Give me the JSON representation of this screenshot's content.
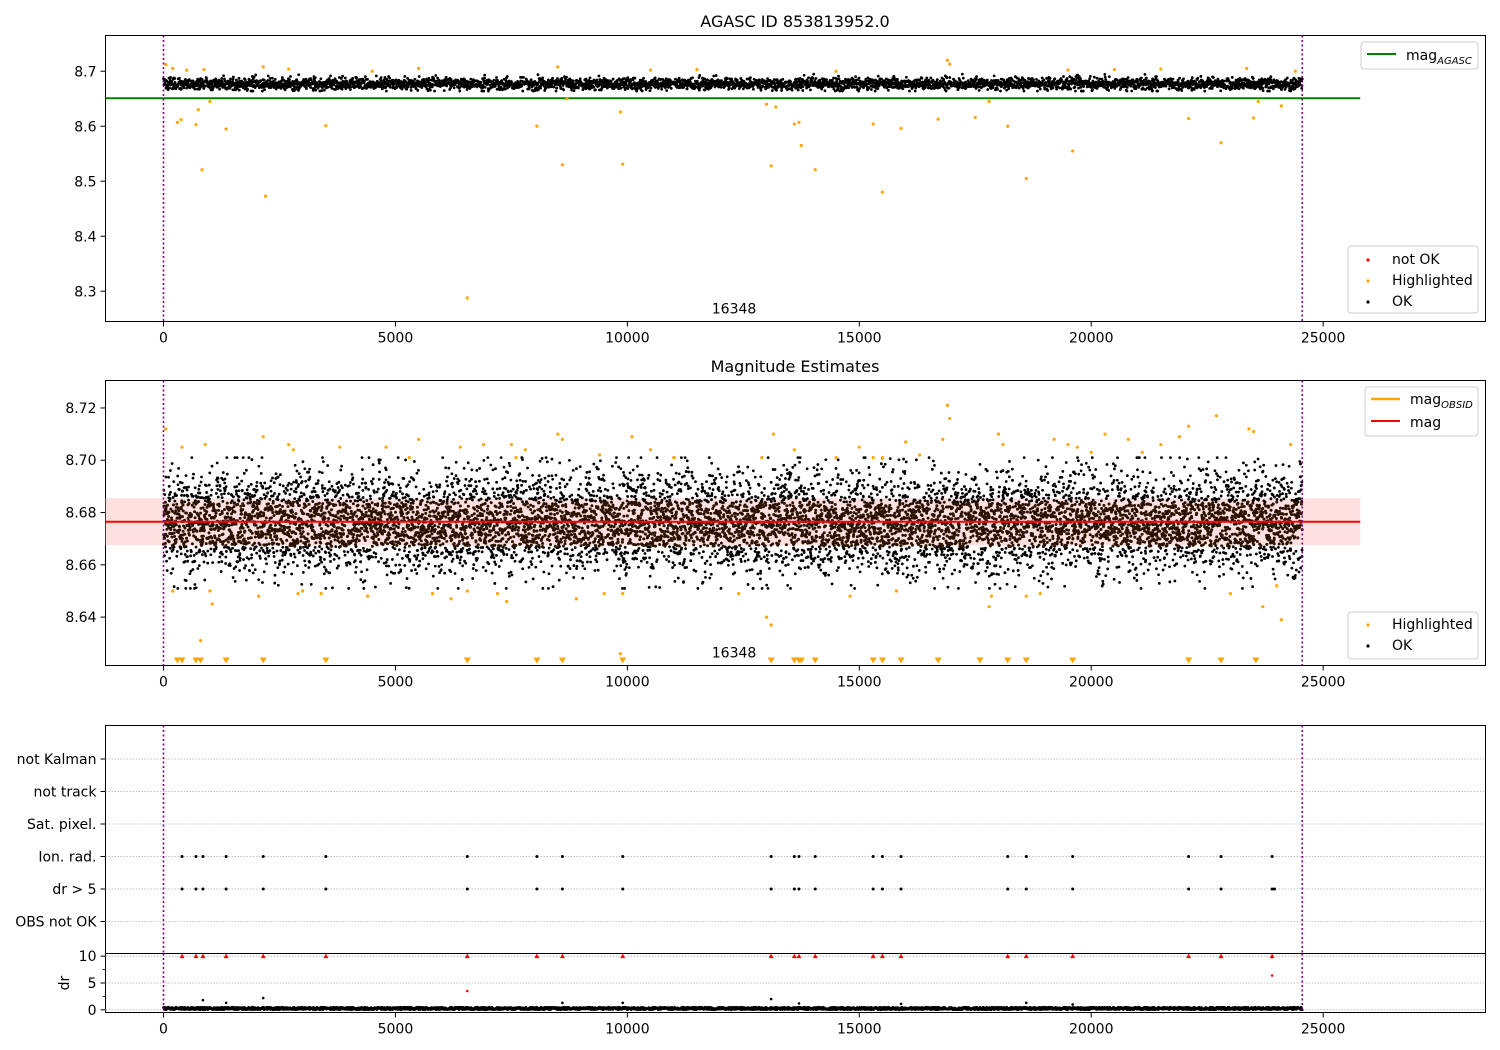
{
  "chart_data": [
    {
      "type": "scatter",
      "title": "AGASC ID 853813952.0",
      "xlabel": "",
      "ylabel": "",
      "xlim": [
        -1250,
        28500
      ],
      "ylim": [
        8.245,
        8.765
      ],
      "xticks": [
        0,
        5000,
        10000,
        15000,
        20000,
        25000
      ],
      "yticks": [
        8.3,
        8.4,
        8.5,
        8.6,
        8.7
      ],
      "ytick_labels": [
        "8.3",
        "8.4",
        "8.5",
        "8.6",
        "8.7"
      ],
      "grid": false,
      "obsid_annotation": "16348",
      "obsid_annotation_x": 12300,
      "obsid_boundaries": [
        0,
        24550
      ],
      "reference_lines": [
        {
          "name": "mag_AGASC",
          "label": "mag",
          "subscript": "AGASC",
          "y": 8.651,
          "x_range": [
            -1250,
            25800
          ],
          "color": "#008000"
        }
      ],
      "legend_upper": {
        "position": "top-right",
        "entries": [
          {
            "label": "mag",
            "subscript": "AGASC",
            "kind": "line",
            "color": "#008000"
          }
        ]
      },
      "legend_lower": {
        "position": "bottom-right",
        "entries": [
          {
            "label": "not OK",
            "kind": "point",
            "color": "#ff0000"
          },
          {
            "label": "Highlighted",
            "kind": "point",
            "color": "#ffa500"
          },
          {
            "label": "OK",
            "kind": "point",
            "color": "#000000"
          }
        ]
      },
      "series": [
        {
          "name": "OK",
          "color": "#000000",
          "x_range": [
            0,
            24550
          ],
          "n": 4200,
          "band": [
            8.664,
            8.698
          ],
          "center": 8.677
        },
        {
          "name": "Highlighted",
          "color": "#ffa500",
          "points": [
            [
              50,
              8.712
            ],
            [
              200,
              8.705
            ],
            [
              300,
              8.607
            ],
            [
              380,
              8.612
            ],
            [
              500,
              8.702
            ],
            [
              700,
              8.603
            ],
            [
              750,
              8.63
            ],
            [
              830,
              8.521
            ],
            [
              870,
              8.703
            ],
            [
              1000,
              8.645
            ],
            [
              1350,
              8.595
            ],
            [
              2150,
              8.708
            ],
            [
              2200,
              8.473
            ],
            [
              2700,
              8.704
            ],
            [
              3500,
              8.601
            ],
            [
              4500,
              8.7
            ],
            [
              5500,
              8.705
            ],
            [
              6550,
              8.288
            ],
            [
              8050,
              8.6
            ],
            [
              8500,
              8.708
            ],
            [
              8600,
              8.53
            ],
            [
              8700,
              8.65
            ],
            [
              9850,
              8.626
            ],
            [
              9900,
              8.531
            ],
            [
              10500,
              8.702
            ],
            [
              11500,
              8.703
            ],
            [
              13000,
              8.64
            ],
            [
              13100,
              8.528
            ],
            [
              13200,
              8.635
            ],
            [
              13600,
              8.604
            ],
            [
              13700,
              8.607
            ],
            [
              13750,
              8.565
            ],
            [
              14050,
              8.521
            ],
            [
              14500,
              8.7
            ],
            [
              15300,
              8.604
            ],
            [
              15500,
              8.48
            ],
            [
              15900,
              8.596
            ],
            [
              16700,
              8.613
            ],
            [
              16900,
              8.72
            ],
            [
              16950,
              8.713
            ],
            [
              17500,
              8.616
            ],
            [
              17800,
              8.645
            ],
            [
              18200,
              8.6
            ],
            [
              18600,
              8.505
            ],
            [
              19500,
              8.702
            ],
            [
              19600,
              8.555
            ],
            [
              20500,
              8.703
            ],
            [
              21500,
              8.704
            ],
            [
              22100,
              8.614
            ],
            [
              22800,
              8.57
            ],
            [
              23350,
              8.705
            ],
            [
              23500,
              8.615
            ],
            [
              23600,
              8.645
            ],
            [
              24100,
              8.637
            ],
            [
              24400,
              8.7
            ]
          ]
        },
        {
          "name": "not OK",
          "color": "#ff0000",
          "points": []
        }
      ]
    },
    {
      "type": "scatter",
      "title": "Magnitude Estimates",
      "xlabel": "",
      "ylabel": "",
      "xlim": [
        -1250,
        28500
      ],
      "ylim": [
        8.6215,
        8.7305
      ],
      "xticks": [
        0,
        5000,
        10000,
        15000,
        20000,
        25000
      ],
      "yticks": [
        8.64,
        8.66,
        8.68,
        8.7,
        8.72
      ],
      "ytick_labels": [
        "8.64",
        "8.66",
        "8.68",
        "8.70",
        "8.72"
      ],
      "grid": false,
      "obsid_annotation": "16348",
      "obsid_annotation_x": 12300,
      "obsid_boundaries": [
        0,
        24550
      ],
      "reference_lines": [
        {
          "name": "mag",
          "label": "mag",
          "y": 8.6765,
          "x_range": [
            -1250,
            25800
          ],
          "color": "#ff0000"
        },
        {
          "name": "mag_OBSID",
          "label": "mag",
          "subscript": "OBSID",
          "y": 8.6765,
          "x_range": [
            0,
            24550
          ],
          "color": "#ffa500"
        }
      ],
      "error_band": {
        "y_low": 8.6675,
        "y_high": 8.6855,
        "x_range": [
          -1250,
          25800
        ],
        "color": "#ffcccc"
      },
      "legend_upper": {
        "position": "top-right",
        "entries": [
          {
            "label": "mag",
            "subscript": "OBSID",
            "kind": "line",
            "color": "#ffa500"
          },
          {
            "label": "mag",
            "kind": "line",
            "color": "#ff0000"
          }
        ]
      },
      "legend_lower": {
        "position": "bottom-right",
        "entries": [
          {
            "label": "Highlighted",
            "kind": "point",
            "color": "#ffa500"
          },
          {
            "label": "OK",
            "kind": "point",
            "color": "#000000"
          }
        ]
      },
      "series": [
        {
          "name": "OK",
          "color": "#000000",
          "x_range": [
            0,
            24550
          ],
          "n": 9000,
          "band": [
            8.651,
            8.701
          ],
          "center": 8.676,
          "core_color": "#2a1200",
          "core_band": [
            8.667,
            8.684
          ]
        },
        {
          "name": "Highlighted",
          "color": "#ffa500",
          "points": [
            [
              50,
              8.712
            ],
            [
              200,
              8.65
            ],
            [
              400,
              8.705
            ],
            [
              800,
              8.631
            ],
            [
              900,
              8.706
            ],
            [
              1000,
              8.65
            ],
            [
              1050,
              8.645
            ],
            [
              2050,
              8.648
            ],
            [
              2150,
              8.709
            ],
            [
              2700,
              8.706
            ],
            [
              2800,
              8.704
            ],
            [
              2900,
              8.649
            ],
            [
              3000,
              8.65
            ],
            [
              3400,
              8.649
            ],
            [
              3800,
              8.705
            ],
            [
              4400,
              8.648
            ],
            [
              4800,
              8.705
            ],
            [
              5300,
              8.701
            ],
            [
              5500,
              8.708
            ],
            [
              5800,
              8.649
            ],
            [
              6200,
              8.647
            ],
            [
              6400,
              8.705
            ],
            [
              6550,
              8.65
            ],
            [
              6900,
              8.706
            ],
            [
              7200,
              8.649
            ],
            [
              7400,
              8.646
            ],
            [
              7500,
              8.706
            ],
            [
              7600,
              8.701
            ],
            [
              7800,
              8.704
            ],
            [
              8500,
              8.71
            ],
            [
              8600,
              8.708
            ],
            [
              8900,
              8.647
            ],
            [
              9400,
              8.702
            ],
            [
              9500,
              8.649
            ],
            [
              9850,
              8.626
            ],
            [
              9900,
              8.649
            ],
            [
              10100,
              8.709
            ],
            [
              10500,
              8.704
            ],
            [
              11000,
              8.701
            ],
            [
              12400,
              8.649
            ],
            [
              12900,
              8.701
            ],
            [
              13000,
              8.64
            ],
            [
              13100,
              8.637
            ],
            [
              13150,
              8.71
            ],
            [
              13600,
              8.704
            ],
            [
              14500,
              8.701
            ],
            [
              14800,
              8.648
            ],
            [
              15000,
              8.705
            ],
            [
              15300,
              8.701
            ],
            [
              15500,
              8.701
            ],
            [
              15800,
              8.65
            ],
            [
              16000,
              8.707
            ],
            [
              16300,
              8.702
            ],
            [
              16800,
              8.708
            ],
            [
              16900,
              8.721
            ],
            [
              16950,
              8.716
            ],
            [
              17800,
              8.644
            ],
            [
              17850,
              8.648
            ],
            [
              18000,
              8.71
            ],
            [
              18100,
              8.706
            ],
            [
              18600,
              8.648
            ],
            [
              18900,
              8.649
            ],
            [
              19200,
              8.708
            ],
            [
              19500,
              8.706
            ],
            [
              19700,
              8.705
            ],
            [
              20000,
              8.703
            ],
            [
              20300,
              8.71
            ],
            [
              20800,
              8.708
            ],
            [
              21100,
              8.703
            ],
            [
              21500,
              8.706
            ],
            [
              21900,
              8.709
            ],
            [
              22100,
              8.713
            ],
            [
              22700,
              8.717
            ],
            [
              23000,
              8.649
            ],
            [
              23400,
              8.712
            ],
            [
              23500,
              8.711
            ],
            [
              23700,
              8.644
            ],
            [
              24000,
              8.652
            ],
            [
              24100,
              8.639
            ],
            [
              24300,
              8.706
            ]
          ]
        },
        {
          "name": "Highlighted (off-scale, drawn at bottom edge)",
          "color": "#ffa500",
          "marker": "triangle-down",
          "x": [
            300,
            400,
            700,
            800,
            1350,
            2150,
            3500,
            6550,
            8050,
            8600,
            9900,
            13100,
            13600,
            13700,
            13750,
            14050,
            15300,
            15500,
            15900,
            16700,
            17600,
            18200,
            18600,
            19600,
            22100,
            22800,
            23550
          ]
        }
      ]
    },
    {
      "type": "scatter",
      "title": "",
      "xlabel": "",
      "ylabel": "",
      "xlim": [
        -1250,
        28500
      ],
      "flag_labels": [
        "not Kalman",
        "not track",
        "Sat. pixel.",
        "Ion. rad.",
        "dr > 5",
        "OBS not OK"
      ],
      "obsid_boundaries": [
        0,
        24550
      ],
      "grid": true,
      "series": [
        {
          "name": "Ion. rad.",
          "color": "#000000",
          "x": [
            400,
            700,
            850,
            1350,
            2150,
            3500,
            6550,
            8050,
            8600,
            9900,
            13100,
            13600,
            13700,
            14050,
            15300,
            15500,
            15900,
            18200,
            18600,
            19600,
            22100,
            22800,
            23900
          ]
        },
        {
          "name": "dr > 5",
          "color": "#000000",
          "x": [
            400,
            700,
            850,
            1350,
            2150,
            3500,
            6550,
            8050,
            8600,
            9900,
            13100,
            13600,
            13700,
            14050,
            15300,
            15500,
            15900,
            18200,
            18600,
            19600,
            22100,
            22800,
            23900,
            23950
          ]
        }
      ]
    },
    {
      "type": "scatter",
      "title": "",
      "xlabel": "",
      "ylabel": "dr",
      "xlim": [
        -1250,
        28500
      ],
      "ylim": [
        -0.5,
        10.5
      ],
      "xticks": [
        0,
        5000,
        10000,
        15000,
        20000,
        25000
      ],
      "yticks": [
        0,
        5,
        10
      ],
      "ytick_labels": [
        "0",
        "5",
        "10"
      ],
      "obsid_boundaries": [
        0,
        24550
      ],
      "grid": true,
      "series": [
        {
          "name": "OK",
          "color": "#000000",
          "x_range": [
            0,
            24550
          ],
          "n": 3500,
          "band": [
            0.0,
            0.5
          ],
          "outliers": [
            [
              850,
              1.8
            ],
            [
              1350,
              1.3
            ],
            [
              2150,
              2.2
            ],
            [
              8600,
              1.3
            ],
            [
              9900,
              1.3
            ],
            [
              13100,
              2.0
            ],
            [
              13700,
              1.2
            ],
            [
              15900,
              1.1
            ],
            [
              18600,
              1.3
            ],
            [
              19600,
              1.0
            ]
          ]
        },
        {
          "name": "not OK",
          "color": "#ff0000",
          "points": [
            [
              6550,
              3.5
            ],
            [
              23900,
              6.4
            ]
          ],
          "clipped_x": [
            400,
            700,
            850,
            1350,
            2150,
            3500,
            6550,
            8050,
            8600,
            9900,
            13100,
            13600,
            13700,
            14050,
            15300,
            15500,
            15900,
            18200,
            18600,
            19600,
            22100,
            22800,
            23900
          ]
        }
      ]
    }
  ]
}
